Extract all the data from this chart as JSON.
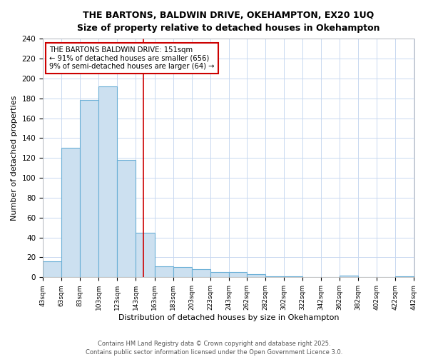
{
  "title_line1": "THE BARTONS, BALDWIN DRIVE, OKEHAMPTON, EX20 1UQ",
  "title_line2": "Size of property relative to detached houses in Okehampton",
  "xlabel": "Distribution of detached houses by size in Okehampton",
  "ylabel": "Number of detached properties",
  "bar_color": "#cce0f0",
  "bar_edge_color": "#6aafd6",
  "annotation_line_color": "#cc0000",
  "annotation_box_color": "#cc0000",
  "annotation_text_line1": "THE BARTONS BALDWIN DRIVE: 151sqm",
  "annotation_text_line2": "← 91% of detached houses are smaller (656)",
  "annotation_text_line3": "9% of semi-detached houses are larger (64) →",
  "vline_x_index": 7,
  "bins": [
    43,
    63,
    83,
    103,
    123,
    143,
    163,
    183,
    203,
    223,
    243,
    262,
    282,
    302,
    322,
    342,
    362,
    382,
    402,
    422,
    442
  ],
  "bin_labels": [
    "43sqm",
    "63sqm",
    "83sqm",
    "103sqm",
    "123sqm",
    "143sqm",
    "163sqm",
    "183sqm",
    "203sqm",
    "223sqm",
    "243sqm",
    "262sqm",
    "282sqm",
    "302sqm",
    "322sqm",
    "342sqm",
    "362sqm",
    "382sqm",
    "402sqm",
    "422sqm",
    "442sqm"
  ],
  "bar_heights": [
    16,
    130,
    178,
    192,
    118,
    45,
    11,
    10,
    8,
    5,
    5,
    3,
    1,
    1,
    0,
    0,
    2,
    0,
    0,
    1
  ],
  "ylim": [
    0,
    240
  ],
  "yticks": [
    0,
    20,
    40,
    60,
    80,
    100,
    120,
    140,
    160,
    180,
    200,
    220,
    240
  ],
  "footer_text": "Contains HM Land Registry data © Crown copyright and database right 2025.\nContains public sector information licensed under the Open Government Licence 3.0.",
  "background_color": "#ffffff",
  "grid_color": "#c8d8f0"
}
